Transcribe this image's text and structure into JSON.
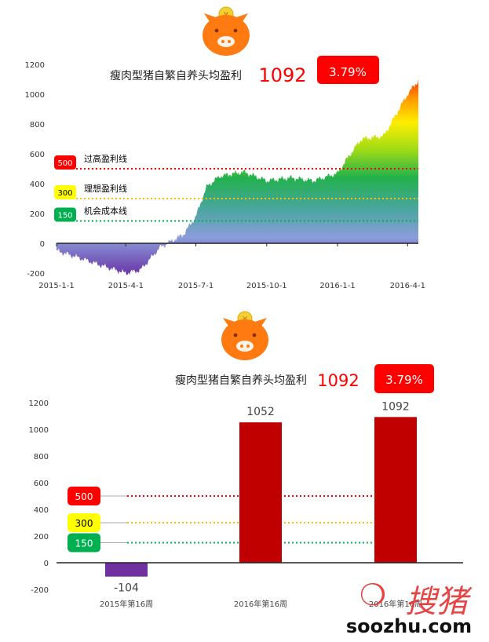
{
  "colors": {
    "accent_red": "#ff0000",
    "bar_red": "#c00000",
    "bar_purple": "#7030a0",
    "line_high": "#ff0000",
    "line_ideal": "#ffc000",
    "line_cost": "#00b050",
    "tag_high": "#ff0000",
    "tag_ideal": "#ffff00",
    "tag_cost": "#00b050"
  },
  "top_chart": {
    "title": "瘦肉型猪自繁自养头均盈利",
    "value": "1092",
    "pct": "3.79%",
    "ref_lines": [
      {
        "value": 500,
        "tag": "500",
        "label": "过高盈利线"
      },
      {
        "value": 300,
        "tag": "300",
        "label": "理想盈利线"
      },
      {
        "value": 150,
        "tag": "150",
        "label": "机会成本线"
      }
    ]
  },
  "bottom_chart": {
    "title": "瘦肉型猪自繁自养头均盈利",
    "value": "1092",
    "pct": "3.79%",
    "ref_tags": [
      "500",
      "300",
      "150"
    ]
  },
  "watermark": {
    "brand": "搜猪",
    "url": "soozhu.com"
  },
  "chart_data": [
    {
      "type": "area",
      "title": "瘦肉型猪自繁自养头均盈利",
      "x_ticks": [
        "2015-1-1",
        "2015-4-1",
        "2015-7-1",
        "2015-10-1",
        "2016-1-1",
        "2016-4-1"
      ],
      "y_ticks": [
        "1200",
        "1000",
        "800",
        "600",
        "400",
        "200",
        "0",
        "-200"
      ],
      "ylim": [
        -200,
        1200
      ],
      "x_range": [
        "2015-01-01",
        "2016-04-15"
      ],
      "series": [
        {
          "x": [
            "2015-01-01",
            "2015-02-01",
            "2015-03-01",
            "2015-04-01",
            "2015-04-20",
            "2015-05-15",
            "2015-06-01",
            "2015-06-15",
            "2015-07-01",
            "2015-07-15",
            "2015-08-01",
            "2015-09-01",
            "2015-10-01",
            "2015-11-01",
            "2015-12-01",
            "2016-01-01",
            "2016-01-15",
            "2016-02-01",
            "2016-03-01",
            "2016-04-01",
            "2016-04-15"
          ],
          "y": [
            -50,
            -100,
            -150,
            -200,
            -180,
            -30,
            20,
            60,
            180,
            380,
            450,
            480,
            420,
            440,
            420,
            470,
            580,
            700,
            720,
            1000,
            1092
          ]
        }
      ],
      "ref_lines": [
        500,
        300,
        150
      ]
    },
    {
      "type": "bar",
      "title": "瘦肉型猪自繁自养头均盈利",
      "categories": [
        "2015年第16周",
        "2016年第16周",
        "2016年第16周"
      ],
      "values": [
        -104,
        1052,
        1092
      ],
      "y_ticks": [
        "1200",
        "1000",
        "800",
        "600",
        "400",
        "200",
        "0",
        "-200"
      ],
      "ylim": [
        -200,
        1200
      ],
      "ref_lines": [
        500,
        300,
        150
      ]
    }
  ]
}
